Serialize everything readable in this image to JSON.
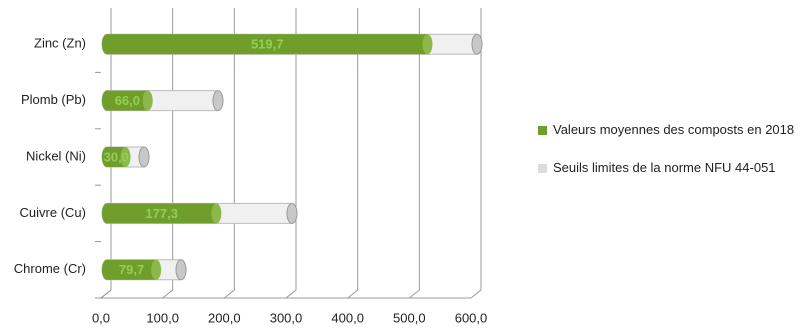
{
  "chart_data": {
    "type": "bar",
    "orientation": "horizontal",
    "overlap": true,
    "categories": [
      "Chrome (Cr)",
      "Cuivre (Cu)",
      "Nickel (Ni)",
      "Plomb (Pb)",
      "Zinc (Zn)"
    ],
    "series": [
      {
        "name": "Valeurs moyennes des composts en 2018",
        "color": "#6f9e2c",
        "values": [
          79.7,
          177.3,
          30.0,
          66.0,
          519.7
        ],
        "value_labels": [
          "79,7",
          "177,3",
          "30,0",
          "66,0",
          "519,7"
        ]
      },
      {
        "name": "Seuils limites de la norme NFU 44-051",
        "color": "#f0f0f0",
        "values": [
          120,
          300,
          60,
          180,
          600
        ]
      }
    ],
    "xlim": [
      0,
      600
    ],
    "xticks": [
      {
        "value": 0,
        "label": "0,0"
      },
      {
        "value": 100,
        "label": "100,0"
      },
      {
        "value": 200,
        "label": "200,0"
      },
      {
        "value": 300,
        "label": "300,0"
      },
      {
        "value": 400,
        "label": "400,0"
      },
      {
        "value": 500,
        "label": "500,0"
      },
      {
        "value": 600,
        "label": "600,0"
      }
    ],
    "grid": true,
    "legend": "right"
  }
}
